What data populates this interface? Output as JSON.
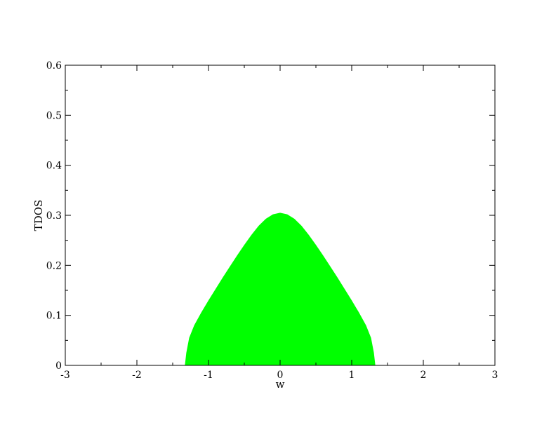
{
  "chart_data": {
    "type": "area",
    "title": "",
    "xlabel": "w",
    "ylabel": "TDOS",
    "xlim": [
      -3,
      3
    ],
    "ylim": [
      0,
      0.6
    ],
    "x_ticks": [
      -3,
      -2,
      -1,
      0,
      1,
      2,
      3
    ],
    "x_tick_labels": [
      "-3",
      "-2",
      "-1",
      "0",
      "1",
      "2",
      "3"
    ],
    "y_ticks": [
      0,
      0.1,
      0.2,
      0.3,
      0.4,
      0.5,
      0.6
    ],
    "y_tick_labels": [
      "0",
      "0.1",
      "0.2",
      "0.3",
      "0.4",
      "0.5",
      "0.6"
    ],
    "x_minor_step": 0.5,
    "y_minor_step": 0.05,
    "grid": false,
    "legend": "none",
    "series": [
      {
        "fill_color": "#00ff00",
        "x": [
          -1.33,
          -1.31,
          -1.27,
          -1.2,
          -1.1,
          -1.0,
          -0.9,
          -0.8,
          -0.7,
          -0.6,
          -0.5,
          -0.4,
          -0.3,
          -0.2,
          -0.1,
          0.0,
          0.1,
          0.2,
          0.3,
          0.4,
          0.5,
          0.6,
          0.7,
          0.8,
          0.9,
          1.0,
          1.1,
          1.2,
          1.27,
          1.31,
          1.33
        ],
        "y": [
          0.0,
          0.025,
          0.055,
          0.08,
          0.106,
          0.13,
          0.153,
          0.176,
          0.198,
          0.22,
          0.241,
          0.261,
          0.279,
          0.293,
          0.302,
          0.305,
          0.302,
          0.293,
          0.279,
          0.261,
          0.241,
          0.22,
          0.198,
          0.176,
          0.153,
          0.13,
          0.106,
          0.08,
          0.055,
          0.025,
          0.0
        ]
      }
    ]
  }
}
